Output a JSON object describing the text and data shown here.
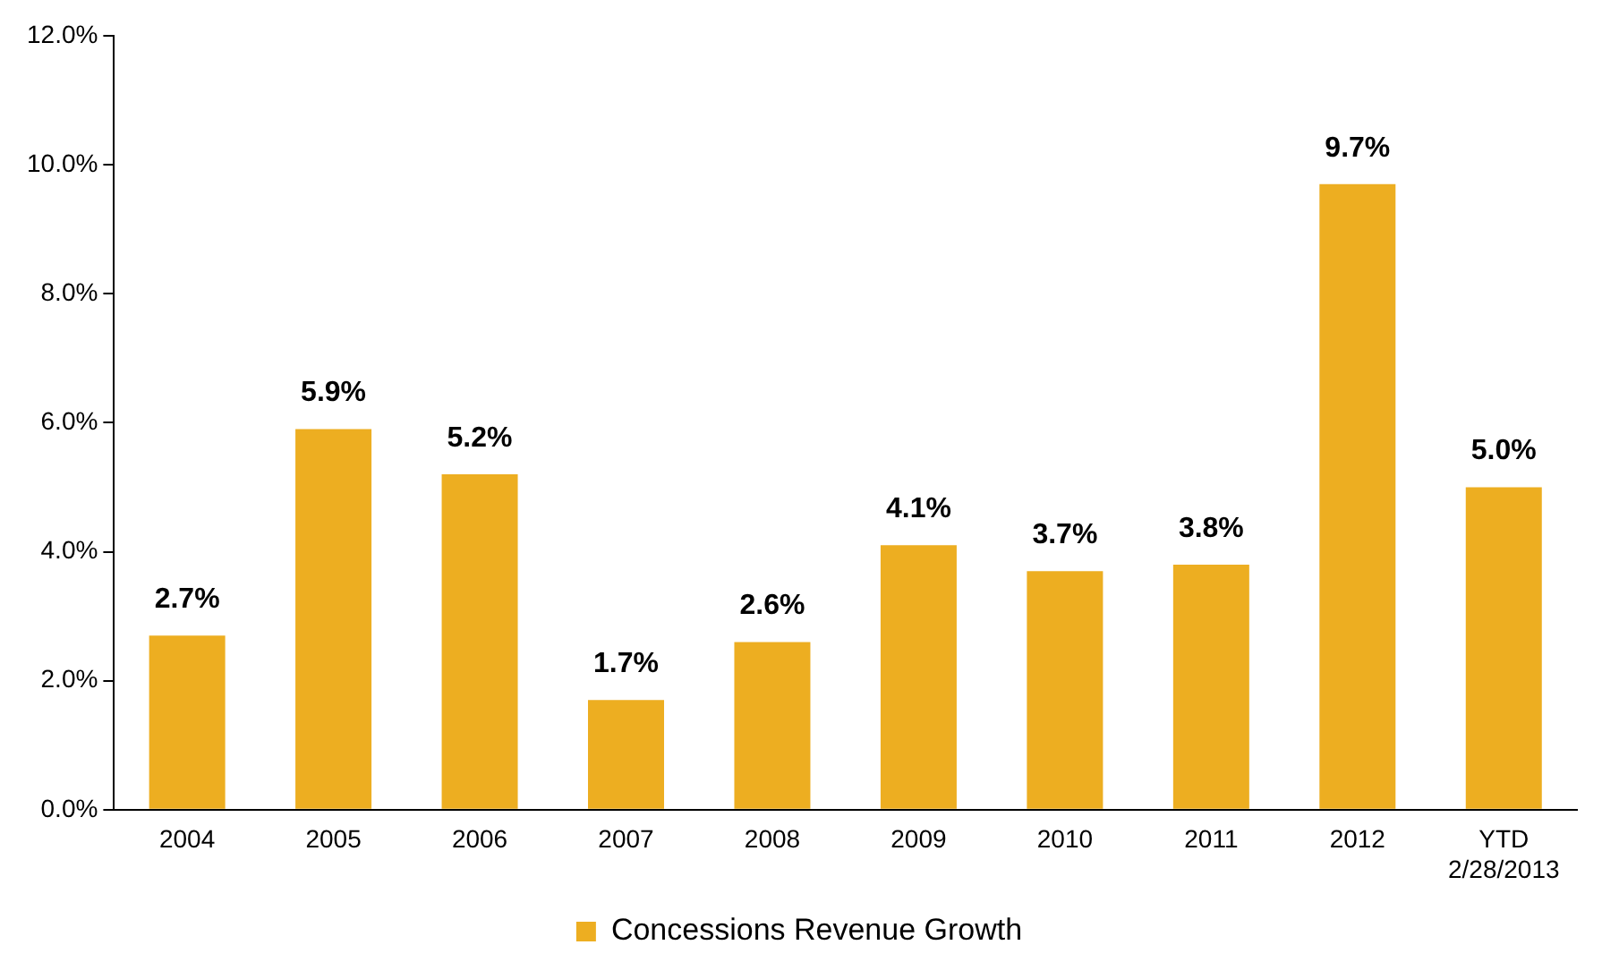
{
  "chart_data": {
    "type": "bar",
    "categories": [
      "2004",
      "2005",
      "2006",
      "2007",
      "2008",
      "2009",
      "2010",
      "2011",
      "2012",
      "YTD 2/28/2013"
    ],
    "series": [
      {
        "name": "Concessions Revenue Growth",
        "color": "#edae21",
        "values": [
          2.7,
          5.9,
          5.2,
          1.7,
          2.6,
          4.1,
          3.7,
          3.8,
          9.7,
          5.0
        ],
        "value_labels": [
          "2.7%",
          "5.9%",
          "5.2%",
          "1.7%",
          "2.6%",
          "4.1%",
          "3.7%",
          "3.8%",
          "9.7%",
          "5.0%"
        ]
      }
    ],
    "ylim": [
      0,
      12
    ],
    "yticks": [
      {
        "value": 0,
        "label": "0.0%"
      },
      {
        "value": 2,
        "label": "2.0%"
      },
      {
        "value": 4,
        "label": "4.0%"
      },
      {
        "value": 6,
        "label": "6.0%"
      },
      {
        "value": 8,
        "label": "8.0%"
      },
      {
        "value": 10,
        "label": "10.0%"
      },
      {
        "value": 12,
        "label": "12.0%"
      }
    ],
    "grid": false,
    "legend": "bottom"
  }
}
